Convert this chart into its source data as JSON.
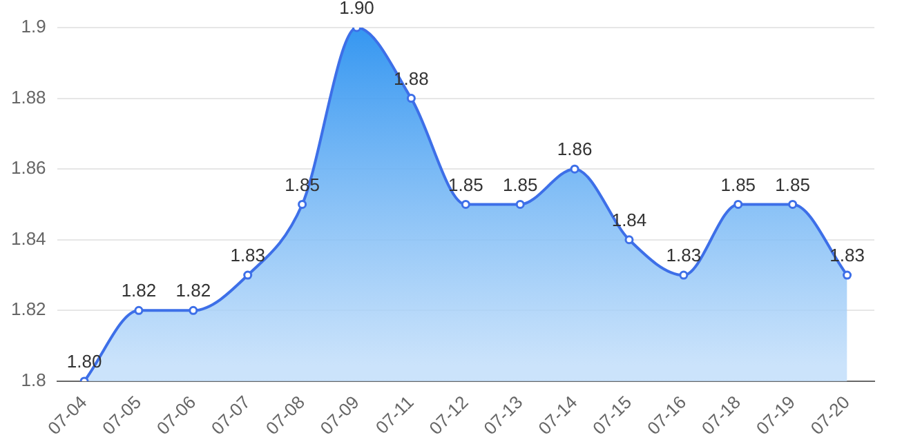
{
  "chart_data": {
    "type": "area",
    "categories": [
      "07-04",
      "07-05",
      "07-06",
      "07-07",
      "07-08",
      "07-09",
      "07-11",
      "07-12",
      "07-13",
      "07-14",
      "07-15",
      "07-16",
      "07-18",
      "07-19",
      "07-20"
    ],
    "series": [
      {
        "color": "#3d6fe8",
        "values": [
          1.8,
          1.82,
          1.82,
          1.83,
          1.85,
          1.9,
          1.88,
          1.85,
          1.85,
          1.86,
          1.84,
          1.83,
          1.85,
          1.85,
          1.83
        ],
        "value_labels": [
          "1.80",
          "1.82",
          "1.82",
          "1.83",
          "1.85",
          "1.90",
          "1.88",
          "1.85",
          "1.85",
          "1.86",
          "1.84",
          "1.83",
          "1.85",
          "1.85",
          "1.83"
        ]
      }
    ],
    "ylim": [
      1.8,
      1.9
    ],
    "yticks": [
      1.8,
      1.82,
      1.84,
      1.86,
      1.88,
      1.9
    ],
    "grid": "y",
    "legend": false,
    "marker": "circle",
    "line_style": "solid"
  }
}
